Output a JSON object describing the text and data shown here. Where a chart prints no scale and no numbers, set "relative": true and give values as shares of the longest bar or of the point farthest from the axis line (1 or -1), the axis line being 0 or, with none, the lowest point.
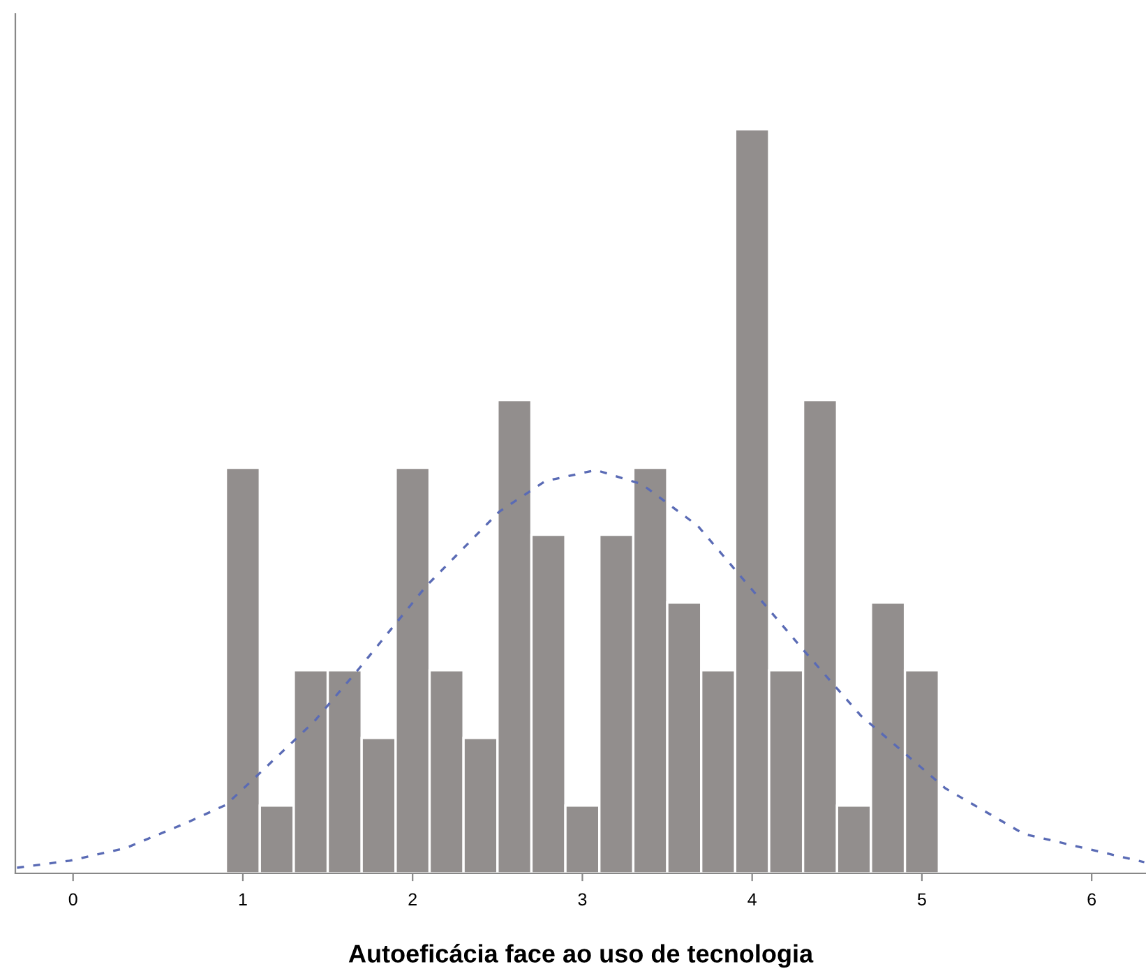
{
  "chart_data": {
    "type": "histogram",
    "relative": true,
    "xlabel": "Autoeficácia face ao uso de tecnologia",
    "bins": [
      0.9,
      1.1,
      1.3,
      1.5,
      1.7,
      1.9,
      2.1,
      2.3,
      2.5,
      2.7,
      2.9,
      3.1,
      3.3,
      3.5,
      3.7,
      3.9,
      4.1,
      4.3,
      4.5,
      4.7,
      4.9,
      5.1
    ],
    "values": [
      0.545,
      0.091,
      0.273,
      0.273,
      0.182,
      0.545,
      0.273,
      0.182,
      0.636,
      0.455,
      0.091,
      0.455,
      0.545,
      0.364,
      0.273,
      1,
      0.273,
      0.636,
      0.091,
      0.364,
      0.273
    ],
    "color": "#928e8d",
    "series": [
      {
        "type": "line",
        "color": "#5a6bb5",
        "line_style": "dashed",
        "x": [
          -0.33,
          -0.02,
          0.31,
          0.67,
          0.9,
          1.05,
          1.42,
          1.68,
          2.08,
          2.51,
          2.78,
          3.08,
          3.35,
          3.68,
          4.03,
          4.31,
          4.64,
          5.14,
          5.6,
          6.31
        ],
        "values": [
          0.0075,
          0.017,
          0.034,
          0.068,
          0.092,
          0.124,
          0.204,
          0.274,
          0.386,
          0.486,
          0.527,
          0.542,
          0.523,
          0.467,
          0.373,
          0.298,
          0.212,
          0.114,
          0.053,
          0.015
        ]
      }
    ],
    "xlim": [
      -0.34,
      6.32
    ],
    "xticks": [
      0,
      1,
      2,
      3,
      4,
      5,
      6
    ]
  }
}
